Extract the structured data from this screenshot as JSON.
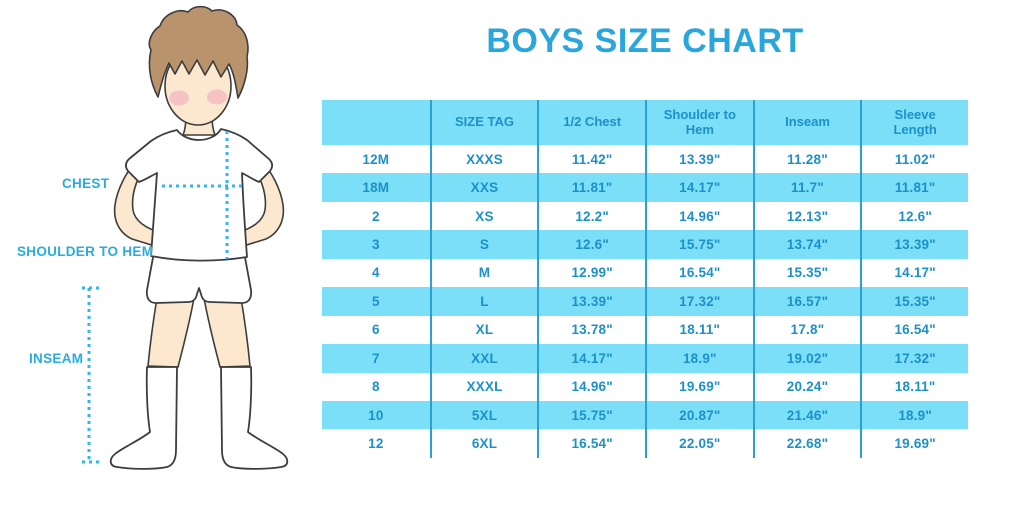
{
  "title": "BOYS SIZE CHART",
  "figure": {
    "chest_label": "CHEST",
    "shoulder_to_hem_label": "SHOULDER TO HEM",
    "inseam_label": "INSEAM"
  },
  "chart_data": {
    "type": "table",
    "title": "BOYS SIZE CHART",
    "columns": [
      "",
      "SIZE TAG",
      "1/2 Chest",
      "Shoulder to Hem",
      "Inseam",
      "Sleeve Length"
    ],
    "rows": [
      [
        "12M",
        "XXXS",
        "11.42\"",
        "13.39\"",
        "11.28\"",
        "11.02\""
      ],
      [
        "18M",
        "XXS",
        "11.81\"",
        "14.17\"",
        "11.7\"",
        "11.81\""
      ],
      [
        "2",
        "XS",
        "12.2\"",
        "14.96\"",
        "12.13\"",
        "12.6\""
      ],
      [
        "3",
        "S",
        "12.6\"",
        "15.75\"",
        "13.74\"",
        "13.39\""
      ],
      [
        "4",
        "M",
        "12.99\"",
        "16.54\"",
        "15.35\"",
        "14.17\""
      ],
      [
        "5",
        "L",
        "13.39\"",
        "17.32\"",
        "16.57\"",
        "15.35\""
      ],
      [
        "6",
        "XL",
        "13.78\"",
        "18.11\"",
        "17.8\"",
        "16.54\""
      ],
      [
        "7",
        "XXL",
        "14.17\"",
        "18.9\"",
        "19.02\"",
        "17.32\""
      ],
      [
        "8",
        "XXXL",
        "14.96\"",
        "19.69\"",
        "20.24\"",
        "18.11\""
      ],
      [
        "10",
        "5XL",
        "15.75\"",
        "20.87\"",
        "21.46\"",
        "18.9\""
      ],
      [
        "12",
        "6XL",
        "16.54\"",
        "22.05\"",
        "22.68\"",
        "19.69\""
      ]
    ],
    "stripe_pattern": "alternating rows, light cyan on rows 18M, 3, 5, 7, 10",
    "legend_position": "none",
    "grid": "vertical column dividers only"
  },
  "colors": {
    "accent_blue": "#2AA6DD",
    "band_cyan": "#7BDFF8",
    "divider_blue": "#2BA0D4",
    "cell_blue": "#1E90C8",
    "label_cyan": "#29ABE2",
    "dotted_cyan": "#2FB7EC",
    "hair_brown": "#B8936C",
    "skin": "#FBE8CE",
    "cheek_pink": "#F3A9BC"
  }
}
